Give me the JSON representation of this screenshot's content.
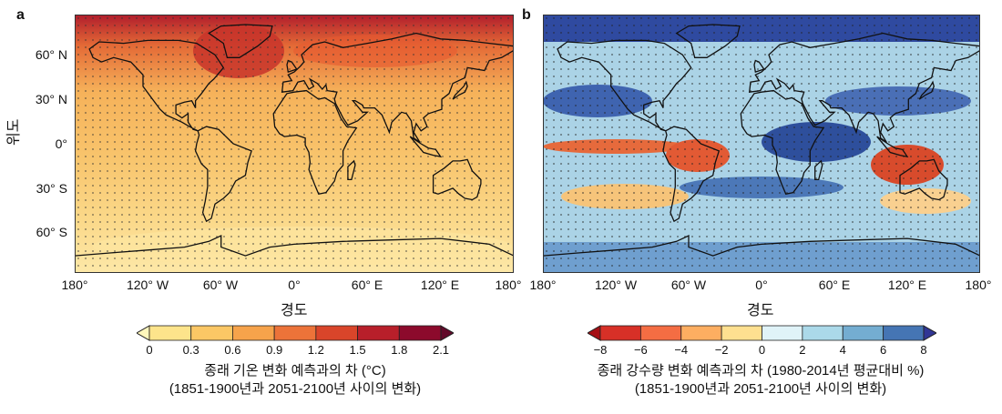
{
  "chart_data": [
    {
      "type": "heatmap",
      "panel_label": "a",
      "title": "종래 기온 변화 예측과의 차 (°C)",
      "subtitle": "(1851-1900년과 2051-2100년 사이의 변화)",
      "xlabel": "경도",
      "ylabel": "위도",
      "xlim": [
        -180,
        180
      ],
      "ylim": [
        -90,
        90
      ],
      "x_ticks": [
        "180°",
        "120° W",
        "60° W",
        "0°",
        "60° E",
        "120° E",
        "180°"
      ],
      "y_ticks": [
        "60° N",
        "30° N",
        "0°",
        "30° S",
        "60° S"
      ],
      "colorbar": {
        "ticks": [
          "0",
          "0.3",
          "0.6",
          "0.9",
          "1.2",
          "1.5",
          "1.8",
          "2.1"
        ],
        "colors": [
          "#fff7bc",
          "#fde48b",
          "#fbc765",
          "#f6a34b",
          "#ec7339",
          "#d9452a",
          "#b81f2a",
          "#8c0a2c",
          "#620a2a"
        ]
      },
      "stippling": "significant regions marked with dots"
    },
    {
      "type": "heatmap",
      "panel_label": "b",
      "title": "종래 강수량 변화 예측과의 차 (1980-2014년 평균대비 %)",
      "subtitle": "(1851-1900년과 2051-2100년 사이의 변화)",
      "xlabel": "경도",
      "xlim": [
        -180,
        180
      ],
      "ylim": [
        -90,
        90
      ],
      "x_ticks": [
        "180°",
        "120° W",
        "60° W",
        "0°",
        "60° E",
        "120° E",
        "180°"
      ],
      "colorbar": {
        "ticks": [
          "−8",
          "−6",
          "−4",
          "−2",
          "0",
          "2",
          "4",
          "6",
          "8"
        ],
        "colors": [
          "#a50f15",
          "#d73027",
          "#f46d43",
          "#fdae61",
          "#fee090",
          "#e0f3f8",
          "#abd9e9",
          "#74add1",
          "#4575b4",
          "#313695"
        ]
      },
      "stippling": "significant regions marked with dots"
    }
  ]
}
